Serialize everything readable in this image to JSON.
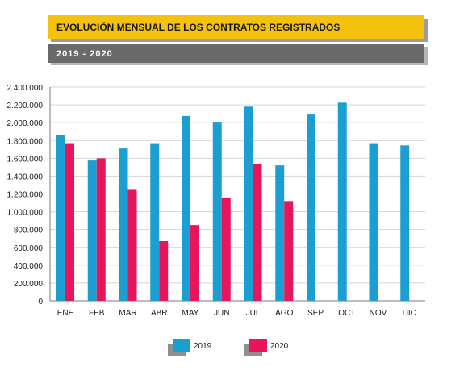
{
  "header": {
    "title": "EVOLUCIÓN MENSUAL DE LOS CONTRATOS REGISTRADOS",
    "subtitle": "2019 - 2020"
  },
  "colors": {
    "title_band": "#f4c20d",
    "subtitle_band": "#6a6a6a",
    "series_2019": "#1a9fd0",
    "series_2020": "#e8145c"
  },
  "chart_data": {
    "type": "bar",
    "categories": [
      "ENE",
      "FEB",
      "MAR",
      "ABR",
      "MAY",
      "JUN",
      "JUL",
      "AGO",
      "SEP",
      "OCT",
      "NOV",
      "DIC"
    ],
    "series": [
      {
        "name": "2019",
        "color": "#1a9fd0",
        "values": [
          1860000,
          1575000,
          1710000,
          1770000,
          2075000,
          2010000,
          2180000,
          1520000,
          2100000,
          2225000,
          1770000,
          1745000
        ]
      },
      {
        "name": "2020",
        "color": "#e8145c",
        "values": [
          1770000,
          1600000,
          1255000,
          670000,
          850000,
          1160000,
          1540000,
          1120000,
          null,
          null,
          null,
          null
        ]
      }
    ],
    "ylim": [
      0,
      2400000
    ],
    "yticks": [
      0,
      200000,
      400000,
      600000,
      800000,
      1000000,
      1200000,
      1400000,
      1600000,
      1800000,
      2000000,
      2200000,
      2400000
    ],
    "ytick_labels": [
      "0",
      "200.000",
      "400.000",
      "600.000",
      "800.000",
      "1.000.000",
      "1.200.000",
      "1.400.000",
      "1.600.000",
      "1.800.000",
      "2.000.000",
      "2.200.000",
      "2.400.000"
    ],
    "grid": true,
    "legend_position": "bottom-center"
  }
}
